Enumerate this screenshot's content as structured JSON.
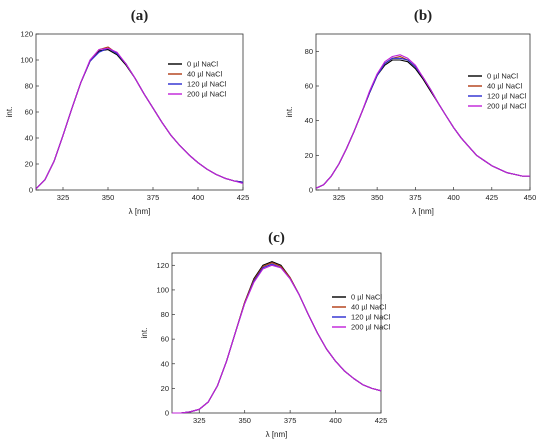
{
  "chart_data": [
    {
      "type": "line",
      "panel_label": "(a)",
      "xlabel": "λ [nm]",
      "ylabel": "int.",
      "xlim": [
        310,
        425
      ],
      "ylim": [
        0,
        120
      ],
      "xticks": [
        "325",
        "350",
        "375",
        "400",
        "425"
      ],
      "yticks": [
        "0",
        "20",
        "40",
        "60",
        "80",
        "100",
        "120"
      ],
      "legend_position": "upper right",
      "x": [
        310,
        315,
        320,
        325,
        330,
        335,
        340,
        345,
        350,
        355,
        360,
        365,
        370,
        375,
        380,
        385,
        390,
        395,
        400,
        405,
        410,
        415,
        420,
        425
      ],
      "series": [
        {
          "name": "0 µl NaCl",
          "color": "#000000",
          "values": [
            1,
            8,
            22,
            42,
            63,
            83,
            99,
            107,
            108,
            104,
            96,
            86,
            74,
            63,
            52,
            42,
            34,
            27,
            21,
            16,
            12,
            9,
            7,
            6
          ]
        },
        {
          "name": "40 µl NaCl",
          "color": "#b03a12",
          "values": [
            1,
            8,
            22,
            42,
            63,
            83,
            99,
            108,
            110,
            105,
            97,
            86,
            74,
            63,
            52,
            42,
            34,
            27,
            21,
            16,
            12,
            9,
            7,
            6
          ]
        },
        {
          "name": "120 µl NaCl",
          "color": "#2a2ad0",
          "values": [
            1,
            8,
            22,
            42,
            63,
            83,
            99,
            106,
            109,
            105,
            97,
            86,
            74,
            63,
            52,
            42,
            34,
            27,
            21,
            16,
            12,
            9,
            7,
            6
          ]
        },
        {
          "name": "200 µl NaCl",
          "color": "#c020d8",
          "values": [
            1,
            8,
            22,
            42,
            63,
            83,
            100,
            108,
            109,
            106,
            97,
            86,
            74,
            63,
            52,
            42,
            34,
            27,
            21,
            16,
            12,
            9,
            7,
            5
          ]
        }
      ]
    },
    {
      "type": "line",
      "panel_label": "(b)",
      "xlabel": "λ [nm]",
      "ylabel": "int.",
      "xlim": [
        310,
        450
      ],
      "ylim": [
        0,
        90
      ],
      "xticks": [
        "325",
        "350",
        "375",
        "400",
        "425",
        "450"
      ],
      "yticks": [
        "0",
        "20",
        "40",
        "60",
        "80"
      ],
      "legend_position": "upper right",
      "x": [
        310,
        315,
        320,
        325,
        330,
        335,
        340,
        345,
        350,
        355,
        360,
        365,
        370,
        375,
        380,
        385,
        390,
        395,
        400,
        405,
        410,
        415,
        420,
        425,
        430,
        435,
        440,
        445,
        450
      ],
      "series": [
        {
          "name": "0 µl NaCl",
          "color": "#000000",
          "values": [
            1,
            3,
            8,
            15,
            24,
            34,
            45,
            56,
            66,
            72,
            75,
            75,
            74,
            70,
            64,
            57,
            50,
            43,
            36,
            30,
            25,
            20,
            17,
            14,
            12,
            10,
            9,
            8,
            8
          ]
        },
        {
          "name": "40 µl NaCl",
          "color": "#b03a12",
          "values": [
            1,
            3,
            8,
            15,
            24,
            34,
            45,
            56,
            66,
            73,
            76,
            77,
            75,
            71,
            65,
            58,
            50,
            43,
            36,
            30,
            25,
            20,
            17,
            14,
            12,
            10,
            9,
            8,
            8
          ]
        },
        {
          "name": "120 µl NaCl",
          "color": "#2a2ad0",
          "values": [
            1,
            3,
            8,
            15,
            24,
            34,
            45,
            56,
            66,
            73,
            76,
            76,
            75,
            71,
            65,
            58,
            50,
            43,
            36,
            30,
            25,
            20,
            17,
            14,
            12,
            10,
            9,
            8,
            8
          ]
        },
        {
          "name": "200 µl NaCl",
          "color": "#c020d8",
          "values": [
            1,
            3,
            8,
            15,
            24,
            34,
            45,
            57,
            67,
            74,
            77,
            78,
            76,
            72,
            65,
            58,
            50,
            43,
            36,
            30,
            25,
            20,
            17,
            14,
            12,
            10,
            9,
            8,
            8
          ]
        }
      ]
    },
    {
      "type": "line",
      "panel_label": "(c)",
      "xlabel": "λ [nm]",
      "ylabel": "int.",
      "xlim": [
        310,
        425
      ],
      "ylim": [
        0,
        130
      ],
      "xticks": [
        "325",
        "350",
        "375",
        "400",
        "425"
      ],
      "yticks": [
        "0",
        "20",
        "40",
        "60",
        "80",
        "100",
        "120"
      ],
      "legend_position": "right",
      "x": [
        310,
        315,
        320,
        325,
        330,
        335,
        340,
        345,
        350,
        355,
        360,
        365,
        370,
        375,
        380,
        385,
        390,
        395,
        400,
        405,
        410,
        415,
        420,
        425
      ],
      "series": [
        {
          "name": "0 µl NaCl",
          "color": "#000000",
          "values": [
            0,
            0,
            1,
            3,
            9,
            22,
            42,
            66,
            90,
            109,
            120,
            123,
            120,
            110,
            96,
            80,
            65,
            52,
            42,
            34,
            28,
            23,
            20,
            18
          ]
        },
        {
          "name": "40 µl NaCl",
          "color": "#b03a12",
          "values": [
            0,
            0,
            1,
            3,
            9,
            22,
            42,
            66,
            90,
            108,
            119,
            122,
            119,
            110,
            96,
            80,
            65,
            52,
            42,
            34,
            28,
            23,
            20,
            18
          ]
        },
        {
          "name": "120 µl NaCl",
          "color": "#2a2ad0",
          "values": [
            0,
            0,
            1,
            3,
            9,
            22,
            42,
            66,
            89,
            107,
            118,
            121,
            118,
            109,
            96,
            80,
            65,
            52,
            42,
            34,
            28,
            23,
            20,
            18
          ]
        },
        {
          "name": "200 µl NaCl",
          "color": "#c020d8",
          "values": [
            0,
            0,
            1,
            3,
            9,
            22,
            42,
            66,
            89,
            106,
            117,
            120,
            118,
            109,
            96,
            80,
            65,
            52,
            42,
            34,
            28,
            23,
            20,
            18
          ]
        }
      ]
    }
  ]
}
